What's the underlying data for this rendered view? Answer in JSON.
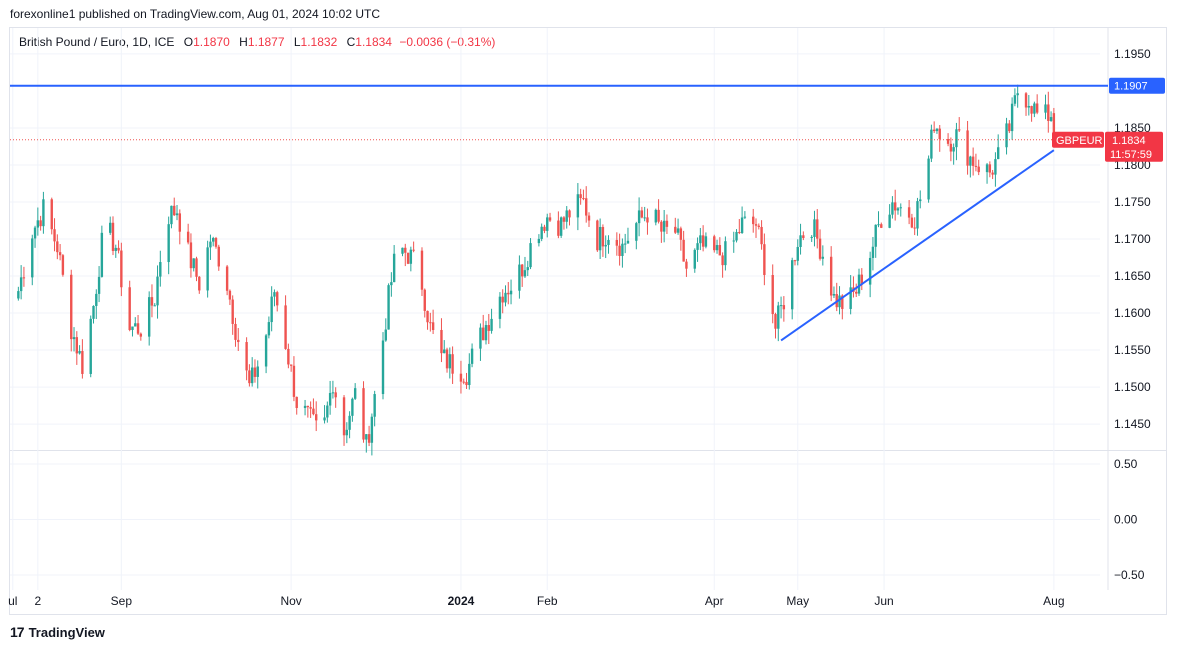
{
  "publisher": "forexonline1 published on TradingView.com, Aug 01, 2024 10:02 UTC",
  "legend": {
    "symbol": "British Pound / Euro, 1D, ICE",
    "open_label": "O",
    "open": "1.1870",
    "high_label": "H",
    "high": "1.1877",
    "low_label": "L",
    "low": "1.1832",
    "close_label": "C",
    "close": "1.1834",
    "change": "−0.0036 (−0.31%)"
  },
  "badges": {
    "horizontal_line_value": "1.1907",
    "ticker": "GBPEUR",
    "last_price": "1.1834",
    "countdown": "11:57:59"
  },
  "footer": {
    "logo_glyph": "17",
    "brand": "TradingView"
  },
  "colors": {
    "up": "#26a69a",
    "down": "#ef5350",
    "line": "#2962ff",
    "price_badge": "#f23645"
  },
  "chart_data": {
    "type": "candlestick",
    "title": "British Pound / Euro, 1D, ICE",
    "ylim": [
      1.1415,
      1.1985
    ],
    "yticks": [
      "1.1950",
      "1.1850",
      "1.1800",
      "1.1750",
      "1.1700",
      "1.1650",
      "1.1600",
      "1.1550",
      "1.1500",
      "1.1450"
    ],
    "oscillator_ylim": [
      -0.5,
      0.5
    ],
    "oscillator_ticks": [
      "0.50",
      "0.00",
      "−0.50"
    ],
    "xticks": [
      "ul",
      "2",
      "Sep",
      "Nov",
      "2024",
      "Feb",
      "Apr",
      "May",
      "Jun",
      "Aug"
    ],
    "horizontal_line": 1.1907,
    "last_price": 1.1834,
    "trendline": {
      "from": [
        "2024-04-25",
        1.1563
      ],
      "to": [
        "2024-08-01",
        1.182
      ]
    },
    "grid": true,
    "waypoints": [
      [
        "2023-07-26",
        1.163
      ],
      [
        "2023-07-31",
        1.171
      ],
      [
        "2023-08-04",
        1.174
      ],
      [
        "2023-08-09",
        1.169
      ],
      [
        "2023-08-14",
        1.158
      ],
      [
        "2023-08-18",
        1.153
      ],
      [
        "2023-08-22",
        1.161
      ],
      [
        "2023-08-26",
        1.172
      ],
      [
        "2023-08-30",
        1.169
      ],
      [
        "2023-09-04",
        1.158
      ],
      [
        "2023-09-08",
        1.158
      ],
      [
        "2023-09-13",
        1.162
      ],
      [
        "2023-09-17",
        1.173
      ],
      [
        "2023-09-21",
        1.174
      ],
      [
        "2023-09-25",
        1.168
      ],
      [
        "2023-09-29",
        1.164
      ],
      [
        "2023-10-03",
        1.17
      ],
      [
        "2023-10-08",
        1.166
      ],
      [
        "2023-10-12",
        1.158
      ],
      [
        "2023-10-17",
        1.15
      ],
      [
        "2023-10-22",
        1.155
      ],
      [
        "2023-10-26",
        1.163
      ],
      [
        "2023-10-30",
        1.156
      ],
      [
        "2023-11-03",
        1.148
      ],
      [
        "2023-11-07",
        1.146
      ],
      [
        "2023-11-12",
        1.143
      ],
      [
        "2023-11-16",
        1.151
      ],
      [
        "2023-11-20",
        1.144
      ],
      [
        "2023-11-24",
        1.149
      ],
      [
        "2023-11-28",
        1.142
      ],
      [
        "2023-12-02",
        1.151
      ],
      [
        "2023-12-06",
        1.162
      ],
      [
        "2023-12-09",
        1.169
      ],
      [
        "2023-12-13",
        1.168
      ],
      [
        "2023-12-17",
        1.166
      ],
      [
        "2023-12-21",
        1.158
      ],
      [
        "2023-12-25",
        1.154
      ],
      [
        "2023-12-29",
        1.153
      ],
      [
        "2024-01-03",
        1.152
      ],
      [
        "2024-01-07",
        1.156
      ],
      [
        "2024-01-12",
        1.16
      ],
      [
        "2024-01-16",
        1.163
      ],
      [
        "2024-01-20",
        1.164
      ],
      [
        "2024-01-24",
        1.167
      ],
      [
        "2024-01-28",
        1.171
      ],
      [
        "2024-02-01",
        1.173
      ],
      [
        "2024-02-06",
        1.172
      ],
      [
        "2024-02-10",
        1.174
      ],
      [
        "2024-02-14",
        1.175
      ],
      [
        "2024-02-19",
        1.17
      ],
      [
        "2024-02-23",
        1.171
      ],
      [
        "2024-02-28",
        1.169
      ],
      [
        "2024-03-04",
        1.172
      ],
      [
        "2024-03-09",
        1.174
      ],
      [
        "2024-03-13",
        1.171
      ],
      [
        "2024-03-18",
        1.171
      ],
      [
        "2024-03-22",
        1.166
      ],
      [
        "2024-03-27",
        1.169
      ],
      [
        "2024-04-01",
        1.168
      ],
      [
        "2024-04-06",
        1.168
      ],
      [
        "2024-04-11",
        1.172
      ],
      [
        "2024-04-16",
        1.172
      ],
      [
        "2024-04-20",
        1.165
      ],
      [
        "2024-04-23",
        1.158
      ],
      [
        "2024-04-27",
        1.163
      ],
      [
        "2024-05-01",
        1.17
      ],
      [
        "2024-05-06",
        1.172
      ],
      [
        "2024-05-10",
        1.168
      ],
      [
        "2024-05-14",
        1.162
      ],
      [
        "2024-05-18",
        1.161
      ],
      [
        "2024-05-22",
        1.163
      ],
      [
        "2024-05-27",
        1.168
      ],
      [
        "2024-05-31",
        1.173
      ],
      [
        "2024-06-04",
        1.175
      ],
      [
        "2024-06-08",
        1.174
      ],
      [
        "2024-06-12",
        1.173
      ],
      [
        "2024-06-16",
        1.178
      ],
      [
        "2024-06-19",
        1.186
      ],
      [
        "2024-06-23",
        1.183
      ],
      [
        "2024-06-27",
        1.184
      ],
      [
        "2024-07-02",
        1.181
      ],
      [
        "2024-07-05",
        1.18
      ],
      [
        "2024-07-09",
        1.179
      ],
      [
        "2024-07-12",
        1.181
      ],
      [
        "2024-07-16",
        1.185
      ],
      [
        "2024-07-19",
        1.19
      ],
      [
        "2024-07-23",
        1.189
      ],
      [
        "2024-07-27",
        1.186
      ],
      [
        "2024-07-31",
        1.187
      ],
      [
        "2024-08-01",
        1.1834
      ]
    ]
  }
}
